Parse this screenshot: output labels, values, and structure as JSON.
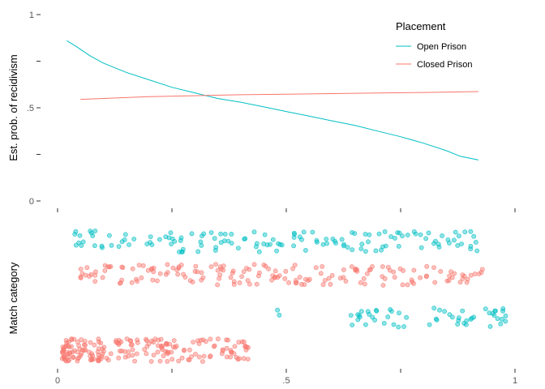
{
  "chart_data": [
    {
      "type": "line",
      "ylabel": "Est. prob. of recidivism",
      "xlim": [
        0,
        1
      ],
      "ylim": [
        0,
        1
      ],
      "y_ticks": [
        {
          "value": 0,
          "label": "0"
        },
        {
          "value": 0.25,
          "label": ""
        },
        {
          "value": 0.5,
          "label": ".5"
        },
        {
          "value": 0.75,
          "label": ""
        },
        {
          "value": 1,
          "label": "1"
        }
      ],
      "grid": false,
      "legend": {
        "title": "Placement",
        "position": "top-right"
      },
      "series": [
        {
          "name": "Open Prison",
          "color": "#00BFC4",
          "x": [
            0.02,
            0.04,
            0.07,
            0.1,
            0.15,
            0.2,
            0.25,
            0.3,
            0.35,
            0.4,
            0.45,
            0.5,
            0.55,
            0.6,
            0.65,
            0.7,
            0.75,
            0.8,
            0.85,
            0.88,
            0.92
          ],
          "y": [
            0.86,
            0.83,
            0.78,
            0.74,
            0.69,
            0.65,
            0.61,
            0.58,
            0.55,
            0.53,
            0.505,
            0.48,
            0.455,
            0.43,
            0.405,
            0.375,
            0.345,
            0.31,
            0.27,
            0.24,
            0.22
          ]
        },
        {
          "name": "Closed Prison",
          "color": "#F8766D",
          "x": [
            0.05,
            0.1,
            0.2,
            0.3,
            0.4,
            0.5,
            0.6,
            0.7,
            0.8,
            0.92
          ],
          "y": [
            0.545,
            0.55,
            0.56,
            0.565,
            0.57,
            0.573,
            0.576,
            0.579,
            0.582,
            0.587
          ]
        }
      ]
    },
    {
      "type": "scatter",
      "ylabel": "Match category",
      "xlim": [
        0,
        1
      ],
      "x_ticks": [
        {
          "value": 0,
          "label": "0"
        },
        {
          "value": 0.25,
          "label": ""
        },
        {
          "value": 0.5,
          "label": ".5"
        },
        {
          "value": 0.75,
          "label": ""
        },
        {
          "value": 1,
          "label": "1"
        }
      ],
      "series": [
        {
          "name": "Open Prison",
          "color": "#00BFC4",
          "groups": [
            {
              "category": 4,
              "x_range": [
                0.02,
                0.92
              ],
              "count": 140,
              "seed": 11
            },
            {
              "category": 2,
              "x_range": [
                0.48,
                0.5
              ],
              "count": 2,
              "seed": 12
            },
            {
              "category": 2,
              "x_range": [
                0.64,
                0.98
              ],
              "count": 55,
              "seed": 13
            }
          ]
        },
        {
          "name": "Closed Prison",
          "color": "#F8766D",
          "groups": [
            {
              "category": 3,
              "x_range": [
                0.05,
                0.93
              ],
              "count": 170,
              "seed": 21
            },
            {
              "category": 1,
              "x_range": [
                0.01,
                0.42
              ],
              "count": 190,
              "seed": 22
            }
          ]
        }
      ]
    }
  ]
}
